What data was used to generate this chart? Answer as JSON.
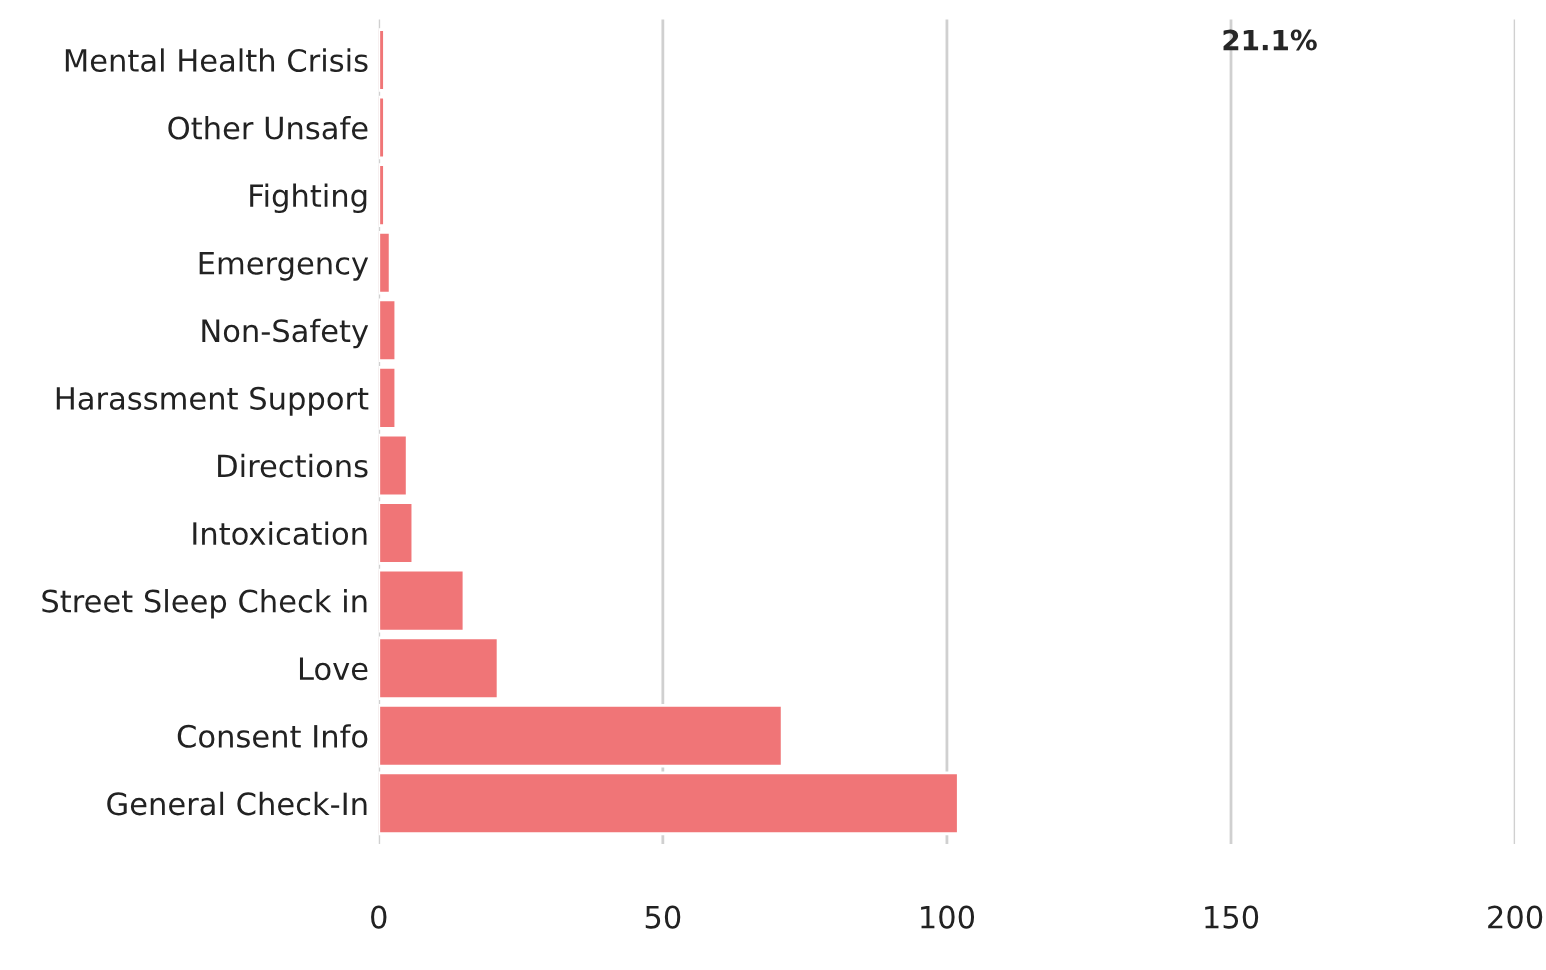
{
  "chart_data": {
    "type": "bar",
    "orientation": "horizontal",
    "categories": [
      "Mental Health Crisis",
      "Other Unsafe",
      "Fighting",
      "Emergency",
      "Non-Safety",
      "Harassment Support",
      "Directions",
      "Intoxication",
      "Street Sleep Check in",
      "Love",
      "Consent Info",
      "General Check-In"
    ],
    "values": [
      1,
      1,
      1,
      2,
      3,
      3,
      5,
      6,
      15,
      21,
      71,
      102
    ],
    "color": "#f07577",
    "xlim": [
      0,
      200
    ],
    "xticks": [
      0,
      50,
      100,
      150,
      200
    ],
    "grid": "x",
    "annotations": [
      "21.1%"
    ]
  }
}
